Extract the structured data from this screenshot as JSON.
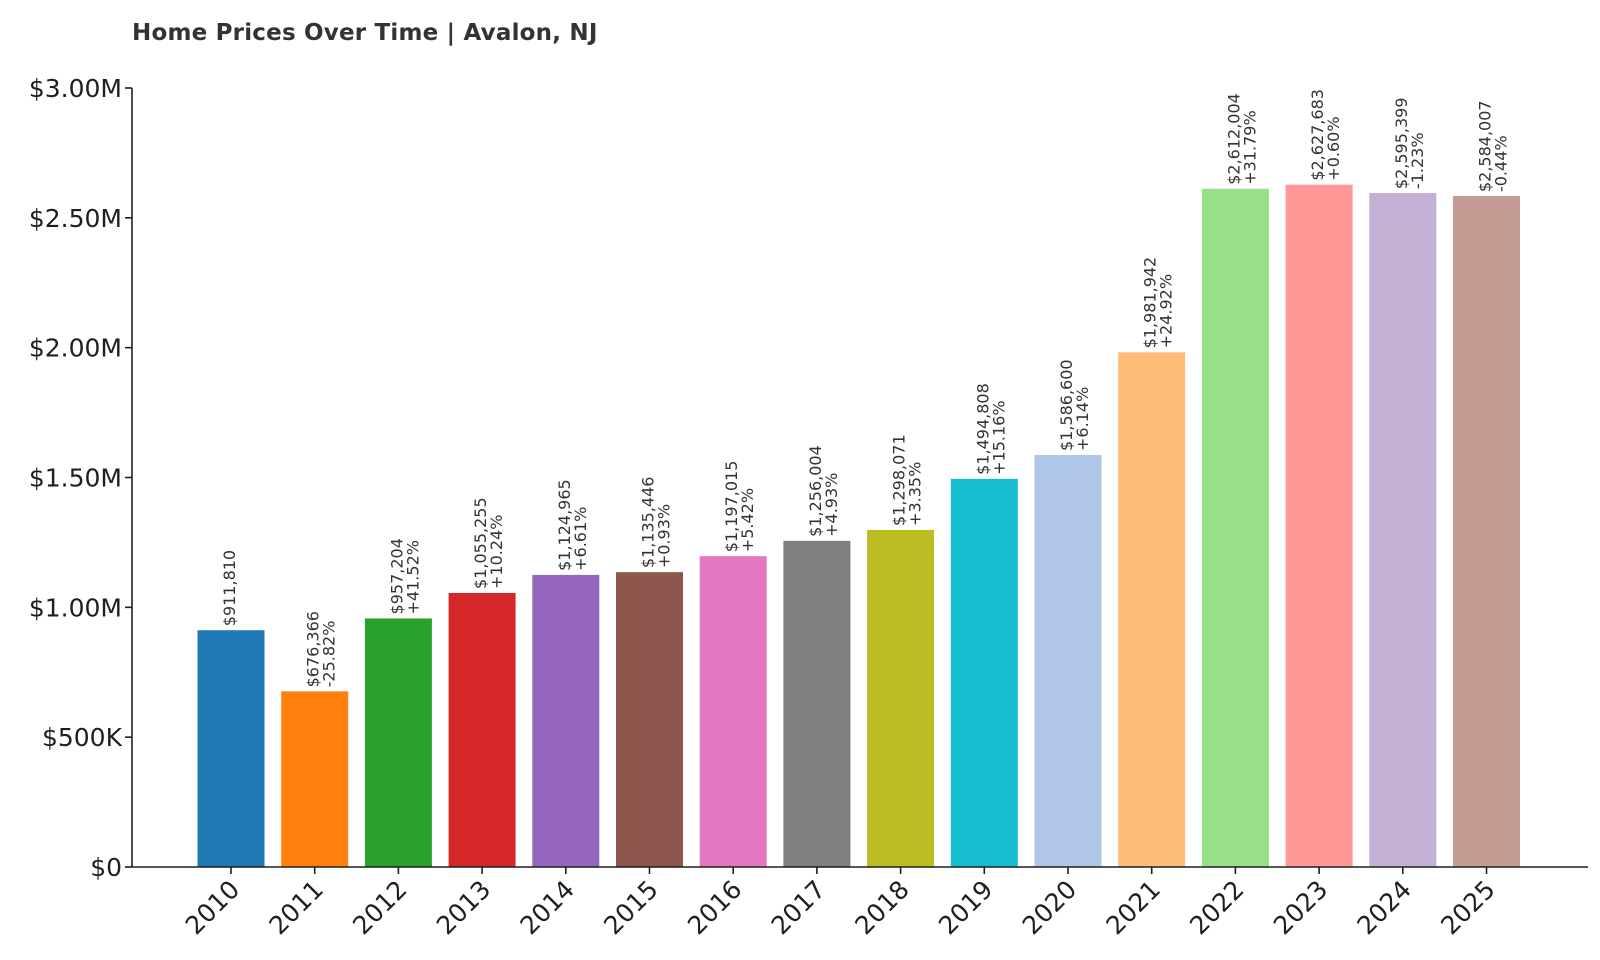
{
  "chart_data": {
    "type": "bar",
    "title": "Home Prices Over Time | Avalon, NJ",
    "xlabel": "",
    "ylabel": "",
    "ylim": [
      0,
      3000000
    ],
    "yticks": [
      {
        "value": 0,
        "label": "$0"
      },
      {
        "value": 500000,
        "label": "$500K"
      },
      {
        "value": 1000000,
        "label": "$1.00M"
      },
      {
        "value": 1500000,
        "label": "$1.50M"
      },
      {
        "value": 2000000,
        "label": "$2.00M"
      },
      {
        "value": 2500000,
        "label": "$2.50M"
      },
      {
        "value": 3000000,
        "label": "$3.00M"
      }
    ],
    "categories": [
      "2010",
      "2011",
      "2012",
      "2013",
      "2014",
      "2015",
      "2016",
      "2017",
      "2018",
      "2019",
      "2020",
      "2021",
      "2022",
      "2023",
      "2024",
      "2025"
    ],
    "values": [
      911810,
      676366,
      957204,
      1055255,
      1124965,
      1135446,
      1197015,
      1256004,
      1298071,
      1494808,
      1586600,
      1981942,
      2612004,
      2627683,
      2595399,
      2584007
    ],
    "value_labels": [
      "$911,810",
      "$676,366",
      "$957,204",
      "$1,055,255",
      "$1,124,965",
      "$1,135,446",
      "$1,197,015",
      "$1,256,004",
      "$1,298,071",
      "$1,494,808",
      "$1,586,600",
      "$1,981,942",
      "$2,612,004",
      "$2,627,683",
      "$2,595,399",
      "$2,584,007"
    ],
    "change_labels": [
      "",
      "-25.82%",
      "+41.52%",
      "+10.24%",
      "+6.61%",
      "+0.93%",
      "+5.42%",
      "+4.93%",
      "+3.35%",
      "+15.16%",
      "+6.14%",
      "+24.92%",
      "+31.79%",
      "+0.60%",
      "-1.23%",
      "-0.44%"
    ],
    "colors": [
      "#1f77b4",
      "#ff7f0e",
      "#2ca02c",
      "#d62728",
      "#9467bd",
      "#8c564b",
      "#e377c2",
      "#7f7f7f",
      "#bcbd22",
      "#17becf",
      "#aec7e8",
      "#ffbb78",
      "#98df8a",
      "#ff9896",
      "#c5b0d5",
      "#c49c94"
    ]
  }
}
